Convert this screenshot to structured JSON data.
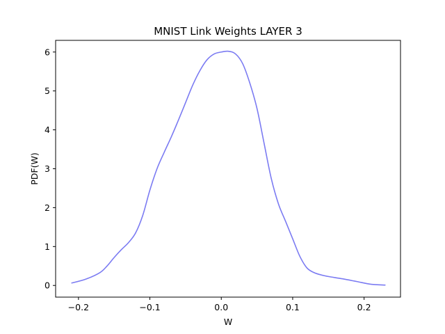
{
  "chart_data": {
    "type": "line",
    "title": "MNIST Link Weights LAYER 3",
    "xlabel": "W",
    "ylabel": "PDF(W)",
    "xlim": [
      -0.232,
      0.251
    ],
    "ylim": [
      -0.3,
      6.3
    ],
    "x_ticks": [
      -0.2,
      -0.1,
      0.0,
      0.1,
      0.2
    ],
    "x_tick_labels": [
      "−0.2",
      "−0.1",
      "0.0",
      "0.1",
      "0.2"
    ],
    "y_ticks": [
      0,
      1,
      2,
      3,
      4,
      5,
      6
    ],
    "y_tick_labels": [
      "0",
      "1",
      "2",
      "3",
      "4",
      "5",
      "6"
    ],
    "grid": false,
    "legend": "none",
    "series": [
      {
        "color": "#7b7bf2",
        "x": [
          -0.21,
          -0.19,
          -0.17,
          -0.16,
          -0.15,
          -0.14,
          -0.13,
          -0.12,
          -0.11,
          -0.1,
          -0.09,
          -0.08,
          -0.07,
          -0.06,
          -0.05,
          -0.04,
          -0.03,
          -0.02,
          -0.01,
          0.0,
          0.01,
          0.02,
          0.03,
          0.04,
          0.05,
          0.06,
          0.07,
          0.08,
          0.09,
          0.1,
          0.11,
          0.12,
          0.13,
          0.14,
          0.15,
          0.17,
          0.19,
          0.21,
          0.23
        ],
        "y": [
          0.06,
          0.16,
          0.33,
          0.5,
          0.72,
          0.92,
          1.1,
          1.35,
          1.8,
          2.45,
          3.0,
          3.42,
          3.82,
          4.25,
          4.7,
          5.15,
          5.52,
          5.8,
          5.95,
          6.0,
          6.02,
          5.95,
          5.7,
          5.2,
          4.55,
          3.65,
          2.75,
          2.1,
          1.65,
          1.2,
          0.75,
          0.45,
          0.33,
          0.27,
          0.23,
          0.17,
          0.1,
          0.03,
          0.01
        ]
      }
    ]
  }
}
